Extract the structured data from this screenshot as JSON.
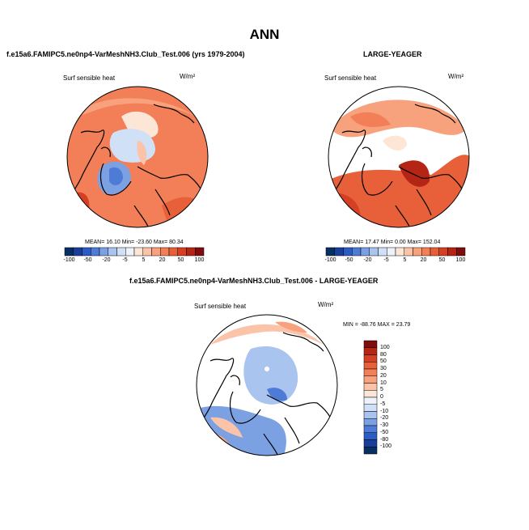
{
  "title": "ANN",
  "chart_data": [
    {
      "type": "map",
      "projection": "north-polar-stereographic",
      "case_title": "f.e15a6.FAMIPC5.ne0np4-VarMeshNH3.Club_Test.006 (yrs 1979-2004)",
      "variable": "Surf sensible heat",
      "units": "W/m²",
      "stats": {
        "mean_label": "MEAN=",
        "mean": "16.10",
        "min_label": "Min=",
        "min": "-23.60",
        "max_label": "Max=",
        "max": "80.34"
      },
      "colorbar": {
        "orientation": "horizontal",
        "levels": [
          "-100",
          "-50",
          "-20",
          "-5",
          "5",
          "20",
          "50",
          "100"
        ],
        "colors": [
          "#053061",
          "#1a3f9a",
          "#2b5cc4",
          "#4d7bd6",
          "#7ba1e3",
          "#a9c4ee",
          "#d0e0f6",
          "#eef3fb",
          "#fde6d6",
          "#fbc4a8",
          "#f7a27c",
          "#f27f57",
          "#e8603a",
          "#d53f24",
          "#b52515",
          "#7f0d0d"
        ]
      }
    },
    {
      "type": "map",
      "projection": "north-polar-stereographic",
      "case_title": "LARGE-YEAGER",
      "variable": "Surf sensible heat",
      "units": "W/m²",
      "stats": {
        "mean_label": "MEAN=",
        "mean": "17.47",
        "min_label": "Min=",
        "min": "0.00",
        "max_label": "Max=",
        "max": "152.04"
      },
      "colorbar": {
        "orientation": "horizontal",
        "levels": [
          "-100",
          "-50",
          "-20",
          "-5",
          "5",
          "20",
          "50",
          "100"
        ],
        "colors": [
          "#053061",
          "#1a3f9a",
          "#2b5cc4",
          "#4d7bd6",
          "#7ba1e3",
          "#a9c4ee",
          "#d0e0f6",
          "#eef3fb",
          "#fde6d6",
          "#fbc4a8",
          "#f7a27c",
          "#f27f57",
          "#e8603a",
          "#d53f24",
          "#b52515",
          "#7f0d0d"
        ]
      }
    },
    {
      "type": "map",
      "projection": "north-polar-stereographic",
      "case_title": "f.e15a6.FAMIPC5.ne0np4-VarMeshNH3.Club_Test.006 - LARGE-YEAGER",
      "variable": "Surf sensible heat",
      "units": "W/m²",
      "stats": {
        "min_label": "MIN =",
        "min": "-88.76",
        "max_label": "MAX =",
        "max": "23.79"
      },
      "colorbar": {
        "orientation": "vertical",
        "levels": [
          "100",
          "80",
          "50",
          "30",
          "20",
          "10",
          "5",
          "0",
          "-5",
          "-10",
          "-20",
          "-30",
          "-50",
          "-80",
          "-100"
        ],
        "colors": [
          "#7f0d0d",
          "#b52515",
          "#d53f24",
          "#e8603a",
          "#f27f57",
          "#f7a27c",
          "#fbc4a8",
          "#fde6d6",
          "#eef3fb",
          "#d0e0f6",
          "#a9c4ee",
          "#7ba1e3",
          "#4d7bd6",
          "#2b5cc4",
          "#1a3f9a",
          "#053061"
        ]
      }
    }
  ]
}
